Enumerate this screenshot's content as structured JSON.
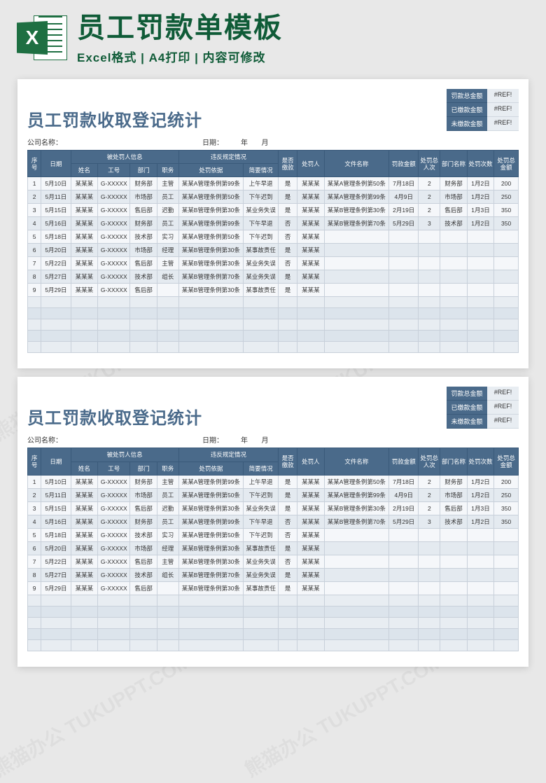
{
  "banner": {
    "title": "员工罚款单模板",
    "subtitle": "Excel格式 | A4打印 | 内容可修改"
  },
  "watermark_text": "熊猫办公 TUKUPPT.COM",
  "colors": {
    "brand_green": "#0f5b37",
    "excel_green": "#1e6f42",
    "header_blue": "#4a6a8a",
    "row_alt1": "#f5f7fa",
    "row_alt2": "#e4eaf0",
    "empty_row": "#dce4ec",
    "page_bg": "#e8e8e8"
  },
  "sheet": {
    "title": "员工罚款收取登记统计",
    "company_label": "公司名称：",
    "date_label": "日期：",
    "year_label": "年",
    "month_label": "月",
    "summary": [
      {
        "label": "罚款总金额",
        "value": "#REF!"
      },
      {
        "label": "已缴款金额",
        "value": "#REF!"
      },
      {
        "label": "未缴款金额",
        "value": "#REF!"
      }
    ],
    "header_groups": {
      "seq": "序号",
      "date": "日期",
      "person_info": "被处罚人信息",
      "violation": "违反规定情况",
      "name": "姓名",
      "id": "工号",
      "dept": "部门",
      "position": "职务",
      "basis": "处罚依据",
      "detail": "简要情况",
      "yn": "是否缴款",
      "handler": "处罚人",
      "doc": "文件名称",
      "amount": "罚款金额",
      "count": "处罚总人次",
      "dept2": "部门名称",
      "pcount": "处罚次数",
      "total": "处罚总金额"
    },
    "rows": [
      {
        "seq": "1",
        "date": "5月10日",
        "name": "某某某",
        "id": "G-XXXXX",
        "dept": "财务部",
        "pos": "主管",
        "basis": "某某A管理条例第99条",
        "detail": "上午早退",
        "yn": "是",
        "handler": "某某某",
        "doc": "某某A管理条例第50条",
        "amount": "7月18日",
        "count": "2",
        "dept2": "财务部",
        "pn": "1月2日",
        "tot": "200"
      },
      {
        "seq": "2",
        "date": "5月11日",
        "name": "某某某",
        "id": "G-XXXXX",
        "dept": "市场部",
        "pos": "员工",
        "basis": "某某A管理条例第50条",
        "detail": "下午迟到",
        "yn": "是",
        "handler": "某某某",
        "doc": "某某A管理条例第99条",
        "amount": "4月9日",
        "count": "2",
        "dept2": "市场部",
        "pn": "1月2日",
        "tot": "250"
      },
      {
        "seq": "3",
        "date": "5月15日",
        "name": "某某某",
        "id": "G-XXXXX",
        "dept": "售后部",
        "pos": "迟勤",
        "basis": "某某B管理条例第30条",
        "detail": "某业务失误",
        "yn": "是",
        "handler": "某某某",
        "doc": "某某B管理条例第30条",
        "amount": "2月19日",
        "count": "2",
        "dept2": "售后部",
        "pn": "1月3日",
        "tot": "350"
      },
      {
        "seq": "4",
        "date": "5月16日",
        "name": "某某某",
        "id": "G-XXXXX",
        "dept": "财务部",
        "pos": "员工",
        "basis": "某某A管理条例第99条",
        "detail": "下午早退",
        "yn": "否",
        "handler": "某某某",
        "doc": "某某B管理条例第70条",
        "amount": "5月29日",
        "count": "3",
        "dept2": "技术部",
        "pn": "1月2日",
        "tot": "350"
      },
      {
        "seq": "5",
        "date": "5月18日",
        "name": "某某某",
        "id": "G-XXXXX",
        "dept": "技术部",
        "pos": "实习",
        "basis": "某某A管理条例第50条",
        "detail": "下午迟到",
        "yn": "否",
        "handler": "某某某",
        "doc": "",
        "amount": "",
        "count": "",
        "dept2": "",
        "pn": "",
        "tot": ""
      },
      {
        "seq": "6",
        "date": "5月20日",
        "name": "某某某",
        "id": "G-XXXXX",
        "dept": "市场部",
        "pos": "经理",
        "basis": "某某B管理条例第30条",
        "detail": "某事故责任",
        "yn": "是",
        "handler": "某某某",
        "doc": "",
        "amount": "",
        "count": "",
        "dept2": "",
        "pn": "",
        "tot": ""
      },
      {
        "seq": "7",
        "date": "5月22日",
        "name": "某某某",
        "id": "G-XXXXX",
        "dept": "售后部",
        "pos": "主管",
        "basis": "某某B管理条例第30条",
        "detail": "某业务失误",
        "yn": "否",
        "handler": "某某某",
        "doc": "",
        "amount": "",
        "count": "",
        "dept2": "",
        "pn": "",
        "tot": ""
      },
      {
        "seq": "8",
        "date": "5月27日",
        "name": "某某某",
        "id": "G-XXXXX",
        "dept": "技术部",
        "pos": "组长",
        "basis": "某某B管理条例第70条",
        "detail": "某业务失误",
        "yn": "是",
        "handler": "某某某",
        "doc": "",
        "amount": "",
        "count": "",
        "dept2": "",
        "pn": "",
        "tot": ""
      },
      {
        "seq": "9",
        "date": "5月29日",
        "name": "某某某",
        "id": "G-XXXXX",
        "dept": "售后部",
        "pos": "",
        "basis": "某某B管理条例第30条",
        "detail": "某事故责任",
        "yn": "是",
        "handler": "某某某",
        "doc": "",
        "amount": "",
        "count": "",
        "dept2": "",
        "pn": "",
        "tot": ""
      }
    ],
    "empty_rows": 5
  }
}
